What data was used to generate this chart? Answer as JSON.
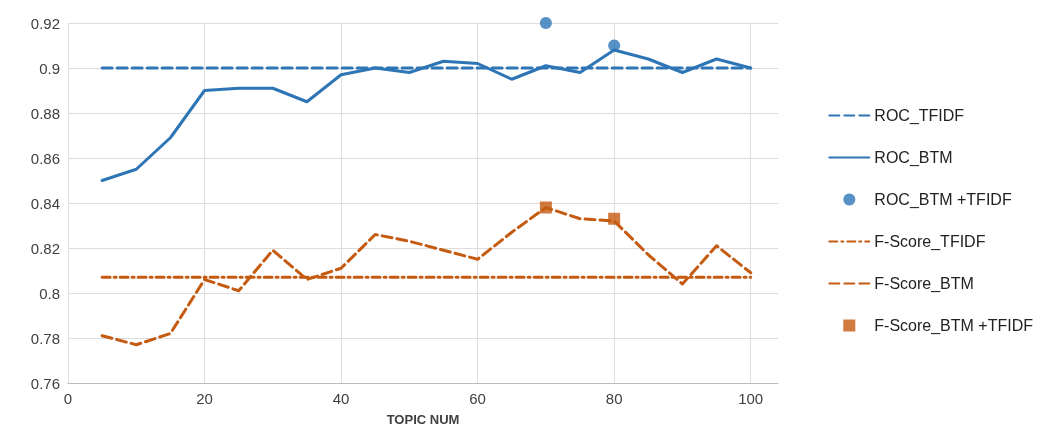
{
  "chart_data": {
    "type": "line",
    "xlabel": "TOPIC NUM",
    "xlim": [
      0,
      104
    ],
    "xticks": [
      0,
      20,
      40,
      60,
      80,
      100
    ],
    "ylim": [
      0.76,
      0.92
    ],
    "yticks": [
      0.76,
      0.78,
      0.8,
      0.82,
      0.84,
      0.86,
      0.88,
      0.9,
      0.92
    ],
    "grid": true,
    "legend": "right",
    "series": [
      {
        "name": "ROC_TFIDF",
        "color": "#2e75b6",
        "line_style": "dashed",
        "marker": "none",
        "x": [
          5,
          100
        ],
        "values": [
          0.9,
          0.9
        ]
      },
      {
        "name": "ROC_BTM",
        "color": "#2e75b6",
        "line_style": "solid",
        "marker": "none",
        "x": [
          5,
          10,
          15,
          20,
          25,
          30,
          35,
          40,
          45,
          50,
          55,
          60,
          65,
          70,
          75,
          80,
          85,
          90,
          95,
          100
        ],
        "values": [
          0.85,
          0.855,
          0.869,
          0.89,
          0.891,
          0.891,
          0.885,
          0.897,
          0.9,
          0.898,
          0.903,
          0.902,
          0.895,
          0.901,
          0.898,
          0.908,
          0.904,
          0.898,
          0.904,
          0.9
        ]
      },
      {
        "name": "ROC_BTM +TFIDF",
        "type": "scatter",
        "color": "#2e75b6",
        "marker": "circle",
        "x": [
          70,
          80
        ],
        "values": [
          0.92,
          0.91
        ]
      },
      {
        "name": "F-Score_TFIDF",
        "color": "#c55a11",
        "line_style": "dashdot",
        "marker": "none",
        "x": [
          5,
          100
        ],
        "values": [
          0.807,
          0.807
        ]
      },
      {
        "name": "F-Score_BTM",
        "color": "#c55a11",
        "line_style": "dashed",
        "marker": "none",
        "x": [
          5,
          10,
          15,
          20,
          25,
          30,
          35,
          40,
          45,
          50,
          55,
          60,
          65,
          70,
          75,
          80,
          85,
          90,
          95,
          100
        ],
        "values": [
          0.781,
          0.777,
          0.782,
          0.806,
          0.801,
          0.819,
          0.806,
          0.811,
          0.826,
          0.823,
          0.819,
          0.815,
          0.827,
          0.838,
          0.833,
          0.832,
          0.817,
          0.804,
          0.821,
          0.809
        ]
      },
      {
        "name": "F-Score_BTM +TFIDF",
        "type": "scatter",
        "color": "#c55a11",
        "marker": "square",
        "x": [
          70,
          80
        ],
        "values": [
          0.838,
          0.833
        ]
      }
    ]
  }
}
